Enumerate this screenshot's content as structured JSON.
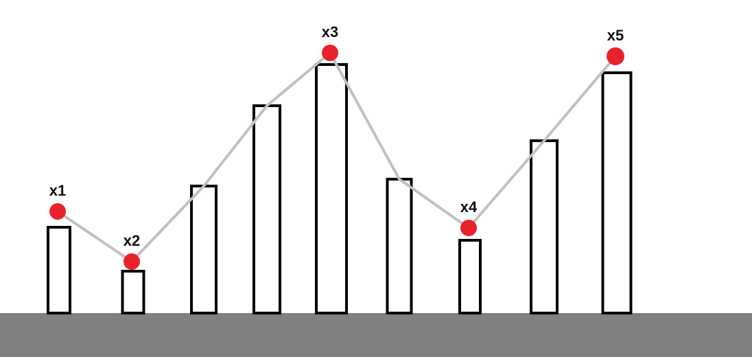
{
  "colors": {
    "ground": "#808080",
    "bar_fill": "#ffffff",
    "bar_stroke": "#000000",
    "line": "#c0c0c0",
    "marker": "#e8222c",
    "label": "#111111"
  },
  "bars": [
    {
      "height": 125
    },
    {
      "height": 61
    },
    {
      "height": 185
    },
    {
      "height": 302
    },
    {
      "height": 362
    },
    {
      "height": 195
    },
    {
      "height": 106
    },
    {
      "height": 251
    },
    {
      "height": 350
    }
  ],
  "markers": [
    {
      "bar_index": 0,
      "label": "x1"
    },
    {
      "bar_index": 1,
      "label": "x2"
    },
    {
      "bar_index": 4,
      "label": "x3"
    },
    {
      "bar_index": 6,
      "label": "x4"
    },
    {
      "bar_index": 8,
      "label": "x5"
    }
  ]
}
